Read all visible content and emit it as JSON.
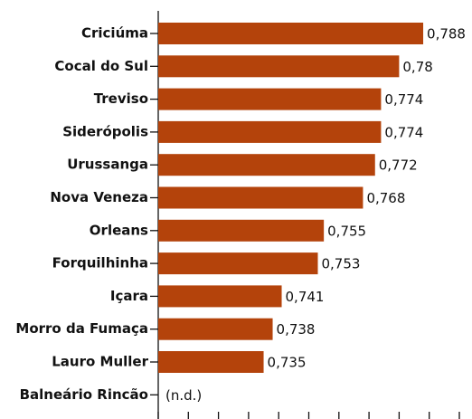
{
  "chart_data": {
    "type": "barh",
    "categories": [
      "Criciúma",
      "Cocal do Sul",
      "Treviso",
      "Siderópolis",
      "Urussanga",
      "Nova Veneza",
      "Orleans",
      "Forquilhinha",
      "Içara",
      "Morro da Fumaça",
      "Lauro Muller",
      "Balneário Rincão"
    ],
    "values": [
      0.788,
      0.78,
      0.774,
      0.774,
      0.772,
      0.768,
      0.755,
      0.753,
      0.741,
      0.738,
      0.735,
      null
    ],
    "value_labels": [
      "0,788",
      "0,78",
      "0,774",
      "0,774",
      "0,772",
      "0,768",
      "0,755",
      "0,753",
      "0,741",
      "0,738",
      "0,735",
      "(n.d.)"
    ],
    "color": "#b4430b",
    "xlim": [
      0.7,
      0.8
    ],
    "xticks": [
      0.7,
      0.71,
      0.72,
      0.73,
      0.74,
      0.75,
      0.76,
      0.77,
      0.78,
      0.79,
      0.8
    ]
  }
}
